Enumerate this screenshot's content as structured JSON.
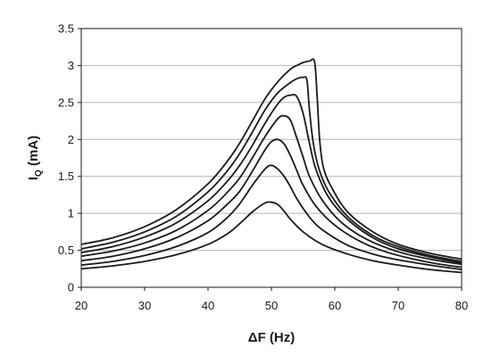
{
  "chart_data": {
    "type": "line",
    "xlabel": "ΔF (Hz)",
    "ylabel_main": "I",
    "ylabel_sub": "Q",
    "ylabel_unit": " (mA)",
    "xlim": [
      20,
      80
    ],
    "ylim": [
      0,
      3.5
    ],
    "xticks": [
      "20",
      "30",
      "40",
      "50",
      "60",
      "70",
      "80"
    ],
    "yticks": [
      "0",
      "0.5",
      "1",
      "1.5",
      "2",
      "2.5",
      "3",
      "3.5"
    ],
    "grid": "horizontal",
    "legend": "none",
    "line_color": "#1a1a1a",
    "series": [
      {
        "x": [
          20,
          25,
          30,
          35,
          40,
          43,
          45,
          47,
          49,
          50,
          51,
          52,
          53,
          55,
          58,
          62,
          66,
          70,
          75,
          80
        ],
        "y": [
          0.25,
          0.29,
          0.35,
          0.44,
          0.58,
          0.72,
          0.86,
          1.02,
          1.14,
          1.15,
          1.12,
          1.03,
          0.92,
          0.75,
          0.58,
          0.45,
          0.36,
          0.3,
          0.24,
          0.2
        ]
      },
      {
        "x": [
          20,
          25,
          30,
          35,
          40,
          43,
          45,
          47,
          49,
          50,
          51,
          52,
          53,
          54,
          56,
          58,
          62,
          66,
          70,
          75,
          80
        ],
        "y": [
          0.3,
          0.35,
          0.43,
          0.55,
          0.74,
          0.94,
          1.13,
          1.38,
          1.6,
          1.65,
          1.6,
          1.5,
          1.36,
          1.2,
          0.95,
          0.78,
          0.57,
          0.45,
          0.37,
          0.3,
          0.24
        ]
      },
      {
        "x": [
          20,
          25,
          30,
          35,
          40,
          43,
          45,
          47,
          49,
          50,
          51,
          52,
          53,
          54,
          55,
          57,
          60,
          64,
          68,
          72,
          76,
          80
        ],
        "y": [
          0.36,
          0.42,
          0.52,
          0.67,
          0.9,
          1.12,
          1.3,
          1.57,
          1.86,
          1.97,
          2.0,
          1.94,
          1.78,
          1.58,
          1.38,
          1.1,
          0.84,
          0.62,
          0.48,
          0.39,
          0.32,
          0.27
        ]
      },
      {
        "x": [
          20,
          25,
          30,
          35,
          40,
          43,
          45,
          47,
          49,
          51,
          52,
          53,
          54,
          55,
          56,
          58,
          61,
          65,
          70,
          75,
          80
        ],
        "y": [
          0.42,
          0.49,
          0.6,
          0.77,
          1.04,
          1.28,
          1.48,
          1.75,
          2.04,
          2.28,
          2.32,
          2.26,
          2.02,
          1.76,
          1.5,
          1.18,
          0.88,
          0.65,
          0.48,
          0.38,
          0.31
        ]
      },
      {
        "x": [
          20,
          25,
          30,
          35,
          40,
          43,
          45,
          47,
          49,
          51,
          52,
          53,
          54,
          55,
          56,
          57,
          59,
          62,
          66,
          70,
          75,
          80
        ],
        "y": [
          0.47,
          0.55,
          0.68,
          0.87,
          1.17,
          1.43,
          1.65,
          1.92,
          2.22,
          2.48,
          2.57,
          2.6,
          2.58,
          2.35,
          1.95,
          1.6,
          1.22,
          0.92,
          0.67,
          0.52,
          0.41,
          0.33
        ]
      },
      {
        "x": [
          20,
          25,
          30,
          35,
          40,
          43,
          45,
          47,
          49,
          51,
          53,
          54,
          55,
          55.6,
          56,
          56.6,
          57.5,
          59,
          62,
          66,
          70,
          75,
          80
        ],
        "y": [
          0.52,
          0.61,
          0.75,
          0.96,
          1.29,
          1.57,
          1.81,
          2.1,
          2.4,
          2.63,
          2.77,
          2.82,
          2.84,
          2.8,
          2.4,
          1.95,
          1.6,
          1.3,
          0.96,
          0.7,
          0.55,
          0.43,
          0.35
        ]
      },
      {
        "x": [
          20,
          25,
          30,
          35,
          40,
          43,
          45,
          47,
          49,
          51,
          53,
          54,
          55,
          56,
          56.8,
          57.2,
          57.6,
          58.2,
          59.5,
          62,
          66,
          70,
          75,
          80
        ],
        "y": [
          0.58,
          0.67,
          0.82,
          1.05,
          1.4,
          1.7,
          1.95,
          2.25,
          2.55,
          2.78,
          2.95,
          3.0,
          3.04,
          3.06,
          3.05,
          2.6,
          2.0,
          1.62,
          1.35,
          1.02,
          0.75,
          0.58,
          0.46,
          0.38
        ]
      }
    ]
  }
}
